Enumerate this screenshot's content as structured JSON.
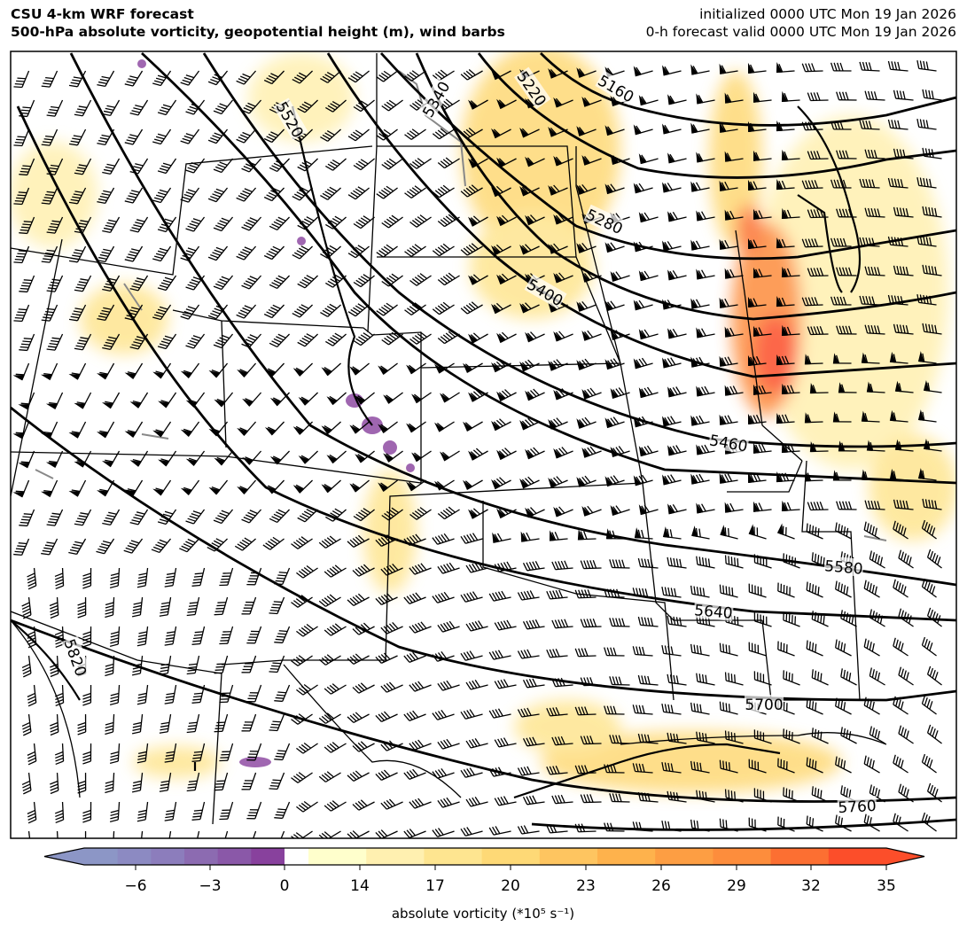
{
  "header": {
    "title": "CSU 4-km WRF forecast",
    "subtitle": "500-hPa absolute vorticity, geopotential height (m), wind barbs",
    "initialized": "initialized 0000 UTC Mon 19 Jan 2026",
    "valid": "0-h forecast valid 0000 UTC Mon 19 Jan 2026"
  },
  "map": {
    "region": "central and western United States",
    "contour_labels": [
      "5160",
      "5220",
      "5280",
      "5340",
      "5400",
      "5460",
      "5520",
      "5580",
      "5640",
      "5700",
      "5760",
      "5820"
    ],
    "colors": {
      "contour": "#000000",
      "borders": "#000000",
      "lakes": "#888888",
      "barbs": "#000000"
    }
  },
  "colorbar": {
    "label": "absolute vorticity (*10⁵ s⁻¹)",
    "ticks": [
      "−6",
      "−3",
      "0",
      "14",
      "17",
      "20",
      "23",
      "26",
      "29",
      "32",
      "35"
    ],
    "extend": "both",
    "colors": [
      "#8c96c6",
      "#8c8ac2",
      "#8c7dbc",
      "#8c6bb1",
      "#8a58a8",
      "#88419d",
      "#ffffff",
      "#ffffcc",
      "#fff0b0",
      "#fee590",
      "#fed976",
      "#fec560",
      "#feb24c",
      "#fd9e43",
      "#fd8d3c",
      "#fc6f32",
      "#fc4e2a"
    ]
  }
}
